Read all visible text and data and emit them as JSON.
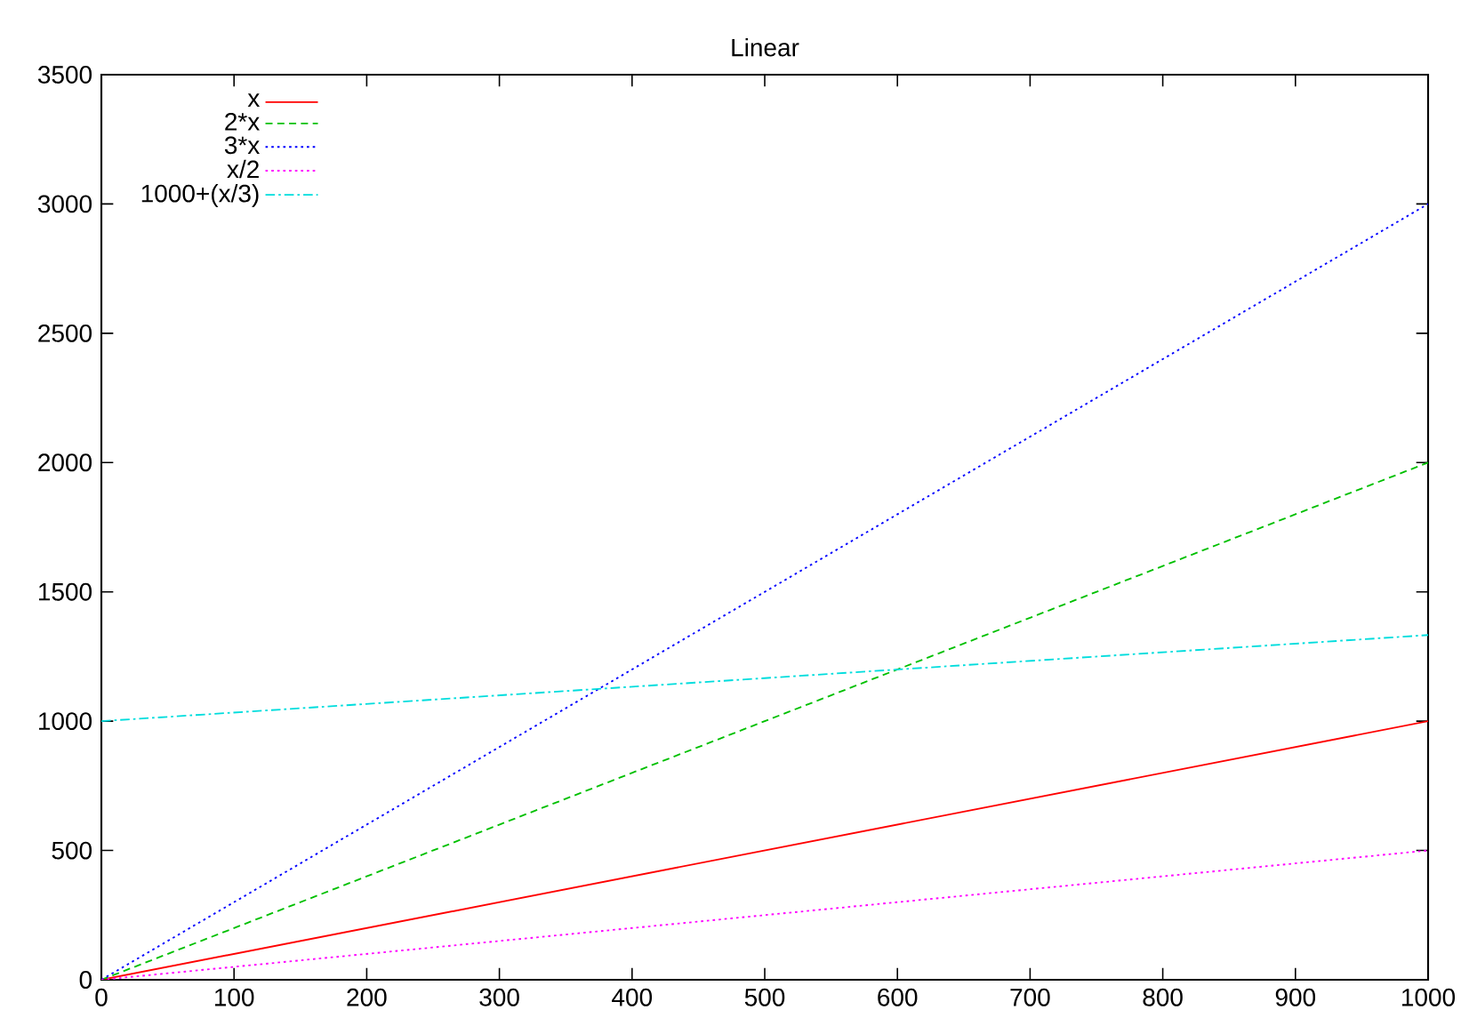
{
  "chart_data": {
    "type": "line",
    "title": "Linear",
    "x": [
      0,
      1000
    ],
    "series": [
      {
        "name": "x",
        "color": "#ff0000",
        "values": [
          0,
          1000
        ],
        "line_style": "solid"
      },
      {
        "name": "2*x",
        "color": "#00c000",
        "values": [
          0,
          2000
        ],
        "line_style": "dashed"
      },
      {
        "name": "3*x",
        "color": "#0000ff",
        "values": [
          0,
          3000
        ],
        "line_style": "dotted"
      },
      {
        "name": "x/2",
        "color": "#ff00ff",
        "values": [
          0,
          500
        ],
        "line_style": "dotted"
      },
      {
        "name": "1000+(x/3)",
        "color": "#00dddd",
        "values": [
          1000,
          1333
        ],
        "line_style": "dashdot"
      }
    ],
    "xlim": [
      0,
      1000
    ],
    "xticks": [
      0,
      100,
      200,
      300,
      400,
      500,
      600,
      700,
      800,
      900,
      1000
    ],
    "ylim": [
      0,
      3500
    ],
    "yticks": [
      0,
      500,
      1000,
      1500,
      2000,
      2500,
      3000,
      3500
    ],
    "grid": false,
    "legend": "top left",
    "marker": "none"
  }
}
